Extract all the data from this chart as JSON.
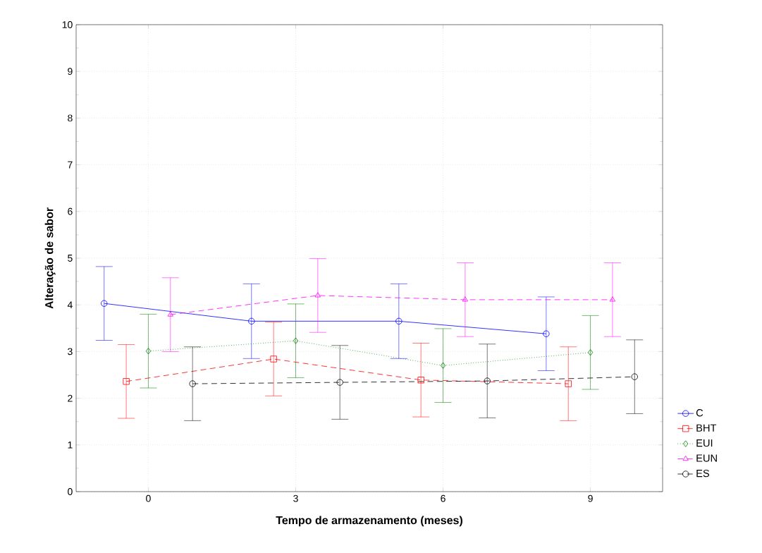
{
  "chart_data": {
    "type": "line",
    "xlabel": "Tempo de armazenamento (meses)",
    "ylabel": "Alteração de sabor",
    "categories": [
      "0",
      "3",
      "6",
      "9"
    ],
    "ylim": [
      0,
      10
    ],
    "yticks": [
      0,
      1,
      2,
      3,
      4,
      5,
      6,
      7,
      8,
      9,
      10
    ],
    "grid": true,
    "legend": "bottom right",
    "series": [
      {
        "name": "C",
        "color": "#0000ff",
        "marker": "circle",
        "line_style": "solid",
        "values": [
          4.03,
          3.65,
          3.65,
          3.38
        ],
        "errors": [
          0.79,
          0.8,
          0.8,
          0.79
        ]
      },
      {
        "name": "BHT",
        "color": "#ff0000",
        "marker": "square",
        "line_style": "dashed",
        "values": [
          2.36,
          2.84,
          2.39,
          2.31
        ],
        "errors": [
          0.79,
          0.79,
          0.79,
          0.79
        ]
      },
      {
        "name": "EUI",
        "color": "#008000",
        "marker": "diamond",
        "line_style": "dotted",
        "values": [
          3.01,
          3.23,
          2.7,
          2.98
        ],
        "errors": [
          0.79,
          0.79,
          0.79,
          0.79
        ]
      },
      {
        "name": "EUN",
        "color": "#ff00ff",
        "marker": "triangle",
        "line_style": "dashed",
        "values": [
          3.79,
          4.2,
          4.11,
          4.11
        ],
        "errors": [
          0.79,
          0.79,
          0.79,
          0.79
        ]
      },
      {
        "name": "ES",
        "color": "#000000",
        "marker": "circle",
        "line_style": "dashed",
        "values": [
          2.31,
          2.34,
          2.37,
          2.46
        ],
        "errors": [
          0.79,
          0.79,
          0.79,
          0.79
        ]
      }
    ]
  }
}
